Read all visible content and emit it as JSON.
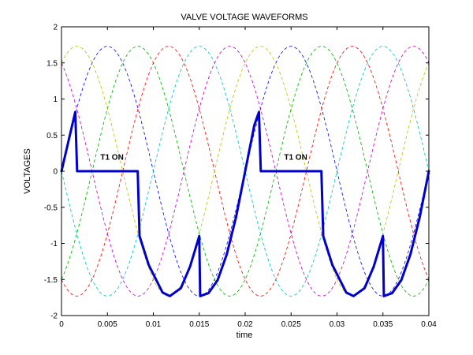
{
  "chart_data": {
    "type": "line",
    "title": "VALVE VOLTAGE WAVEFORMS",
    "xlabel": "time",
    "ylabel": "VOLTAGES",
    "xlim": [
      0,
      0.04
    ],
    "ylim": [
      -2,
      2
    ],
    "grid": false,
    "x_ticks": [
      0,
      0.005,
      0.01,
      0.015,
      0.02,
      0.025,
      0.03,
      0.035,
      0.04
    ],
    "x_tick_labels": [
      "0",
      "0.005",
      "0.01",
      "0.015",
      "0.02",
      "0.025",
      "0.03",
      "0.035",
      "0.04"
    ],
    "y_ticks": [
      -2,
      -1.5,
      -1,
      -0.5,
      0,
      0.5,
      1,
      1.5,
      2
    ],
    "y_tick_labels": [
      "-2",
      "-1.5",
      "-1",
      "-0.5",
      "0",
      "0.5",
      "1",
      "1.5",
      "2"
    ],
    "background_waves": {
      "style": "dashed",
      "amplitude": 1.73,
      "frequency_hz": 50,
      "phase_degrees": [
        0,
        60,
        120,
        180,
        240,
        300
      ],
      "colors": [
        "#0000ff",
        "#00aa00",
        "#ff0000",
        "#00bfbf",
        "#bf00bf",
        "#bfbf00"
      ]
    },
    "series": [
      {
        "style": "solid-thick",
        "color": "#0000cc",
        "x": [
          0,
          0.0015,
          0.0017,
          0.0083,
          0.0085,
          0.0095,
          0.011,
          0.0118,
          0.013,
          0.014,
          0.015,
          0.0151,
          0.016,
          0.017,
          0.018,
          0.019,
          0.02,
          0.021,
          0.0215,
          0.0217,
          0.0283,
          0.0285,
          0.0295,
          0.031,
          0.0318,
          0.033,
          0.034,
          0.035,
          0.0351,
          0.036,
          0.037,
          0.038,
          0.039,
          0.04
        ],
        "y": [
          0,
          0.82,
          0,
          0,
          -0.9,
          -1.3,
          -1.68,
          -1.73,
          -1.62,
          -1.32,
          -0.9,
          -1.73,
          -1.69,
          -1.51,
          -1.15,
          -0.64,
          0,
          0.64,
          0.82,
          0,
          0,
          -0.9,
          -1.3,
          -1.68,
          -1.73,
          -1.62,
          -1.32,
          -0.9,
          -1.73,
          -1.69,
          -1.51,
          -1.15,
          -0.64,
          0
        ]
      }
    ],
    "annotations": [
      {
        "text": "T1 ON",
        "x": 0.0055,
        "y": 0.05
      },
      {
        "text": "T1 ON",
        "x": 0.0255,
        "y": 0.05
      }
    ]
  }
}
